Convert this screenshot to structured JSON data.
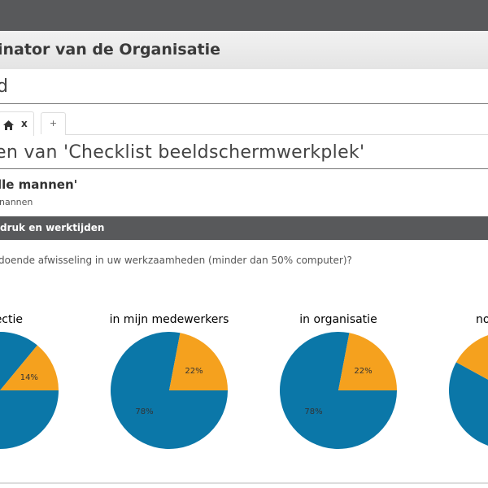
{
  "header": {
    "title": "inator van de Organisatie"
  },
  "dashboard": {
    "title": "d"
  },
  "tabs": {
    "home_close": "x",
    "add": "+"
  },
  "page": {
    "title": "en van 'Checklist beeldschermwerkplek'"
  },
  "group": {
    "title": "lle mannen'",
    "subtitle": "nannen"
  },
  "section": {
    "label": "druk en werktijden"
  },
  "question": "doende afwisseling in uw werkzaamheden (minder dan 50% computer)?",
  "colors": {
    "blue": "#0b77a8",
    "orange": "#f5a11e",
    "dark": "#58595b"
  },
  "chart_data": [
    {
      "type": "pie",
      "title": "ectie",
      "labels": [
        "blue",
        "orange"
      ],
      "values": [
        86,
        14
      ],
      "data_labels": [
        "",
        "14%"
      ]
    },
    {
      "type": "pie",
      "title": "in mijn medewerkers",
      "labels": [
        "blue",
        "orange"
      ],
      "values": [
        78,
        22
      ],
      "data_labels": [
        "78%",
        "22%"
      ]
    },
    {
      "type": "pie",
      "title": "in organisatie",
      "labels": [
        "blue",
        "orange"
      ],
      "values": [
        78,
        22
      ],
      "data_labels": [
        "78%",
        "22%"
      ]
    },
    {
      "type": "pie",
      "title": "no",
      "labels": [
        "blue",
        "orange"
      ],
      "values": [
        58,
        42
      ],
      "data_labels": [
        "",
        ""
      ]
    }
  ]
}
